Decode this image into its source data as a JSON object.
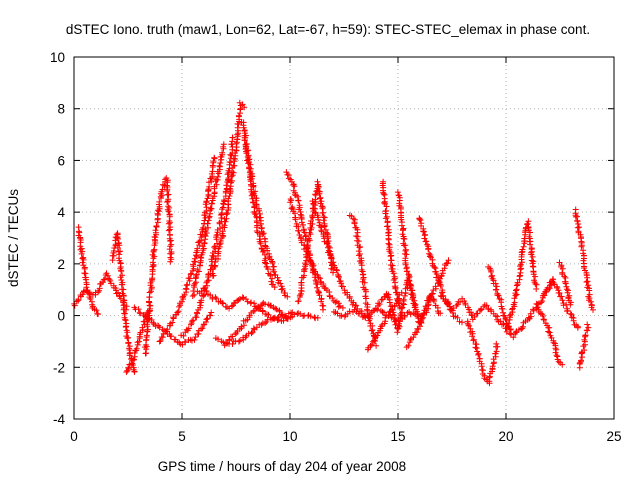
{
  "chart_data": {
    "type": "scatter",
    "title": "dSTEC Iono. truth (maw1, Lon=62, Lat=-67, h=59): STEC-STEC_elemax in phase cont.",
    "xlabel": "GPS time / hours of day 204 of year 2008",
    "ylabel": "dSTEC  / TECUs",
    "xlim": [
      0,
      25
    ],
    "ylim": [
      -4,
      10
    ],
    "xticks": [
      "0",
      "5",
      "10",
      "15",
      "20",
      "25"
    ],
    "yticks": [
      "-4",
      "-2",
      "0",
      "2",
      "4",
      "6",
      "8",
      "10"
    ],
    "grid": true,
    "marker": "+",
    "color": "#ff0000",
    "series": [
      {
        "arcs": [
          {
            "x": [
              0.2,
              0.4,
              0.6,
              0.9,
              1.2
            ],
            "y": [
              3.4,
              2.2,
              1.0,
              0.3,
              0.0
            ]
          },
          {
            "x": [
              0.0,
              0.5,
              1.0,
              1.5,
              2.0,
              2.5
            ],
            "y": [
              0.4,
              1.0,
              0.8,
              1.6,
              0.9,
              0.2
            ]
          },
          {
            "x": [
              1.8,
              2.0,
              2.2,
              2.4,
              2.6,
              2.8
            ],
            "y": [
              2.2,
              3.2,
              1.5,
              -0.4,
              -1.5,
              -2.3
            ]
          },
          {
            "x": [
              2.4,
              2.7,
              3.0,
              3.3,
              3.6
            ],
            "y": [
              -2.2,
              -1.8,
              -1.0,
              -0.2,
              0.4
            ]
          },
          {
            "x": [
              3.3,
              3.5,
              3.7,
              3.9,
              4.1,
              4.3,
              4.5
            ],
            "y": [
              -1.5,
              0.5,
              2.5,
              4.0,
              5.0,
              5.3,
              2.0
            ]
          },
          {
            "x": [
              2.8,
              3.4,
              4.0,
              4.6,
              5.0,
              5.6,
              6.0,
              6.4
            ],
            "y": [
              0.3,
              -0.1,
              -0.5,
              -0.9,
              -1.1,
              -0.9,
              -0.4,
              0.2
            ]
          },
          {
            "x": [
              4.0,
              4.5,
              5.0,
              5.5,
              6.0,
              6.5
            ],
            "y": [
              -1.0,
              -0.3,
              0.5,
              1.8,
              3.5,
              6.2
            ]
          },
          {
            "x": [
              5.5,
              5.9,
              6.2,
              6.5,
              6.8,
              7.0
            ],
            "y": [
              1.0,
              2.2,
              3.6,
              4.8,
              6.0,
              6.7
            ]
          },
          {
            "x": [
              5.0,
              5.4,
              5.8,
              6.2,
              6.6,
              7.0,
              7.4
            ],
            "y": [
              -0.8,
              -0.4,
              0.3,
              1.4,
              2.9,
              4.6,
              7.0
            ]
          },
          {
            "x": [
              6.4,
              6.8,
              7.2,
              7.5,
              7.7,
              7.9
            ],
            "y": [
              1.5,
              2.8,
              4.6,
              6.5,
              8.2,
              8.0
            ]
          },
          {
            "x": [
              7.9,
              8.2,
              8.5,
              8.9,
              9.3
            ],
            "y": [
              7.0,
              5.0,
              3.3,
              2.0,
              1.0
            ]
          },
          {
            "x": [
              7.8,
              8.3,
              8.8,
              9.3,
              9.9
            ],
            "y": [
              7.5,
              5.0,
              3.0,
              1.6,
              0.6
            ]
          },
          {
            "x": [
              5.5,
              6.0,
              6.6,
              7.2,
              7.8,
              8.4,
              9.0,
              9.6,
              10.2
            ],
            "y": [
              0.8,
              1.0,
              0.6,
              0.3,
              0.7,
              0.4,
              0.0,
              -0.2,
              0.0
            ]
          },
          {
            "x": [
              6.6,
              7.2,
              7.8,
              8.4,
              9.0,
              9.6,
              10.2,
              10.8,
              11.4
            ],
            "y": [
              -0.9,
              -1.1,
              -0.9,
              -0.5,
              -0.2,
              0.0,
              0.1,
              0.0,
              -0.1
            ]
          },
          {
            "x": [
              7.0,
              7.6,
              8.2,
              8.8,
              9.4,
              10.0
            ],
            "y": [
              -1.1,
              -0.6,
              0.1,
              0.5,
              0.2,
              -0.2
            ]
          },
          {
            "x": [
              9.8,
              10.1,
              10.4,
              10.7,
              11.0,
              11.3,
              11.6
            ],
            "y": [
              5.5,
              5.2,
              4.3,
              3.2,
              2.0,
              1.0,
              0.2
            ]
          },
          {
            "x": [
              10.0,
              10.5,
              11.0,
              11.5,
              12.0,
              12.5
            ],
            "y": [
              4.5,
              3.0,
              2.0,
              1.2,
              0.6,
              0.2
            ]
          },
          {
            "x": [
              10.4,
              10.7,
              11.0,
              11.3,
              11.6,
              12.0
            ],
            "y": [
              0.5,
              2.0,
              3.6,
              5.2,
              3.6,
              1.6
            ]
          },
          {
            "x": [
              11.0,
              11.5,
              12.0,
              12.5,
              13.0,
              13.5
            ],
            "y": [
              4.4,
              3.2,
              2.0,
              1.0,
              0.4,
              0.0
            ]
          },
          {
            "x": [
              12.0,
              12.5,
              13.0,
              13.5,
              14.0,
              14.5,
              15.0,
              15.5,
              16.0
            ],
            "y": [
              0.1,
              0.0,
              0.2,
              -0.1,
              0.3,
              0.0,
              -0.2,
              0.1,
              0.0
            ]
          },
          {
            "x": [
              12.8,
              13.0,
              13.2,
              13.4,
              13.6,
              13.8,
              14.0
            ],
            "y": [
              3.9,
              3.7,
              2.6,
              1.3,
              0.2,
              -0.6,
              -1.2
            ]
          },
          {
            "x": [
              13.6,
              14.0,
              14.4,
              14.8,
              15.2
            ],
            "y": [
              -1.3,
              -0.8,
              -0.2,
              0.3,
              0.9
            ]
          },
          {
            "x": [
              14.3,
              14.5,
              14.7,
              14.9,
              15.1
            ],
            "y": [
              5.2,
              3.6,
              2.0,
              1.0,
              0.2
            ]
          },
          {
            "x": [
              15.0,
              15.2,
              15.4,
              15.6,
              15.8
            ],
            "y": [
              4.8,
              3.5,
              2.0,
              1.0,
              0.2
            ]
          },
          {
            "x": [
              14.0,
              14.5,
              15.0,
              15.5,
              16.0,
              16.5,
              17.0
            ],
            "y": [
              0.3,
              0.9,
              -0.6,
              1.5,
              -0.3,
              0.8,
              0.0
            ]
          },
          {
            "x": [
              16.0,
              16.4,
              16.8,
              17.2,
              17.6,
              18.0
            ],
            "y": [
              3.8,
              2.6,
              1.5,
              0.6,
              0.0,
              -0.3
            ]
          },
          {
            "x": [
              15.4,
              15.8,
              16.2,
              16.6,
              17.0,
              17.4
            ],
            "y": [
              -1.2,
              -0.7,
              0.0,
              0.8,
              1.6,
              2.2
            ]
          },
          {
            "x": [
              17.0,
              17.5,
              18.0,
              18.5,
              19.0,
              19.5,
              20.0
            ],
            "y": [
              0.8,
              0.3,
              0.6,
              -0.1,
              0.4,
              0.0,
              -0.5
            ]
          },
          {
            "x": [
              18.2,
              18.5,
              18.8,
              19.0,
              19.2,
              19.4,
              19.6
            ],
            "y": [
              -0.2,
              -0.9,
              -1.8,
              -2.4,
              -2.6,
              -2.0,
              -1.0
            ]
          },
          {
            "x": [
              19.2,
              19.5,
              19.8,
              20.0,
              20.3
            ],
            "y": [
              1.9,
              1.2,
              0.4,
              -0.2,
              -0.8
            ]
          },
          {
            "x": [
              20.0,
              20.3,
              20.6,
              20.8,
              21.0,
              21.2,
              21.4
            ],
            "y": [
              -0.6,
              0.2,
              1.4,
              2.6,
              3.6,
              2.4,
              1.0
            ]
          },
          {
            "x": [
              20.3,
              20.8,
              21.3,
              21.8,
              22.2
            ],
            "y": [
              -0.8,
              -0.4,
              0.2,
              0.8,
              1.5
            ]
          },
          {
            "x": [
              21.4,
              21.8,
              22.2,
              22.4,
              22.6
            ],
            "y": [
              0.4,
              -0.2,
              -1.0,
              -1.6,
              -2.0
            ]
          },
          {
            "x": [
              21.8,
              22.2,
              22.6,
              23.0,
              23.4
            ],
            "y": [
              0.8,
              1.4,
              0.6,
              0.0,
              -0.6
            ]
          },
          {
            "x": [
              22.5,
              22.8,
              23.0
            ],
            "y": [
              2.0,
              1.2,
              0.3
            ]
          },
          {
            "x": [
              23.2,
              23.4,
              23.6,
              23.8,
              24.0
            ],
            "y": [
              4.1,
              3.2,
              2.2,
              1.0,
              0.1
            ]
          },
          {
            "x": [
              23.4,
              23.6,
              23.8
            ],
            "y": [
              -2.0,
              -1.2,
              -0.3
            ]
          }
        ]
      }
    ]
  }
}
